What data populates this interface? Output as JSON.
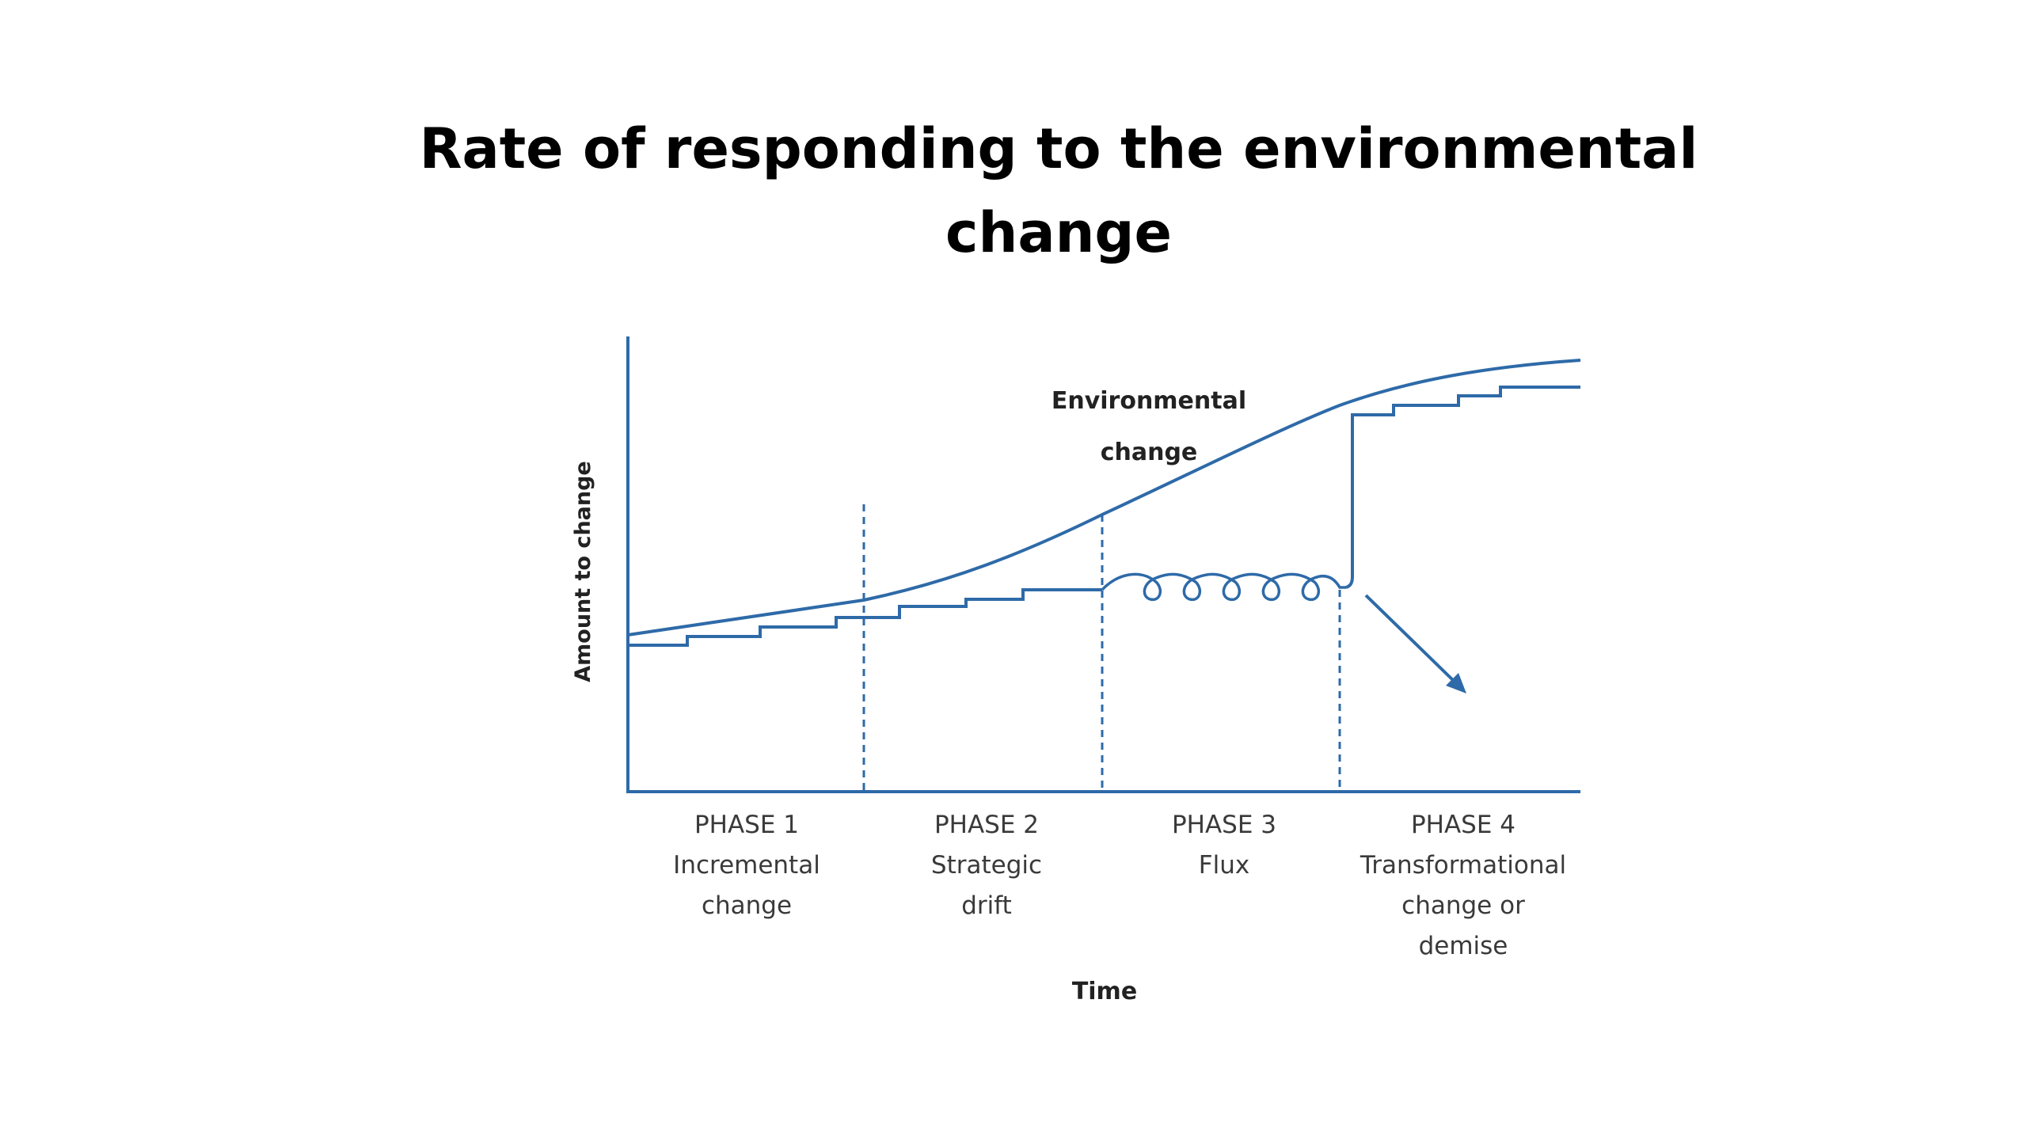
{
  "title": {
    "line1": "Rate of responding to the environmental",
    "line2": "change"
  },
  "diagram": {
    "y_axis_label": "Amount to change",
    "x_axis_label": "Time",
    "curve_label_line1": "Environmental",
    "curve_label_line2": "change",
    "phases": [
      {
        "name": "PHASE 1",
        "desc_line1": "Incremental",
        "desc_line2": "change",
        "desc_line3": ""
      },
      {
        "name": "PHASE 2",
        "desc_line1": "Strategic",
        "desc_line2": "drift",
        "desc_line3": ""
      },
      {
        "name": "PHASE 3",
        "desc_line1": "Flux",
        "desc_line2": "",
        "desc_line3": ""
      },
      {
        "name": "PHASE 4",
        "desc_line1": "Transformational",
        "desc_line2": "change or",
        "desc_line3": "demise"
      }
    ],
    "colors": {
      "line": "#2e6aa8"
    }
  }
}
